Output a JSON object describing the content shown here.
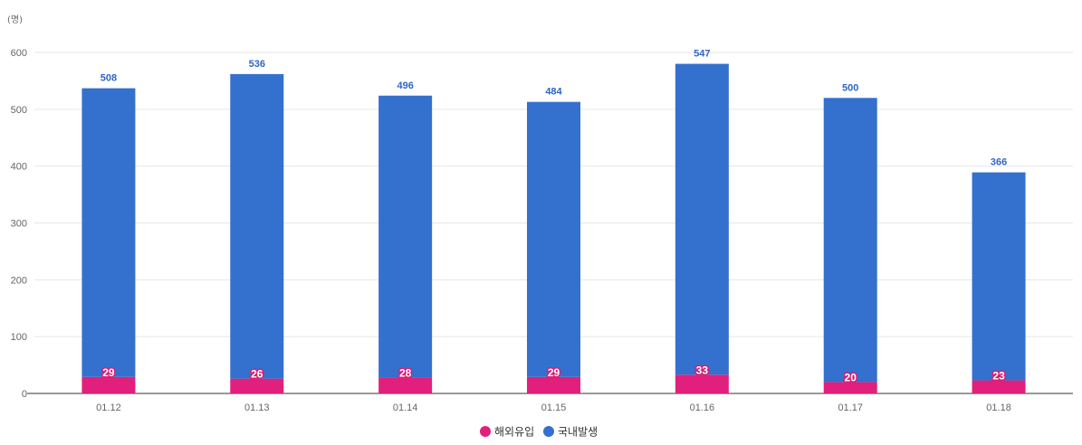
{
  "chart_data": {
    "type": "bar",
    "stacked": true,
    "unit_label": "(명)",
    "categories": [
      "01.12",
      "01.13",
      "01.14",
      "01.15",
      "01.16",
      "01.17",
      "01.18"
    ],
    "series": [
      {
        "name": "해외유입",
        "color": "#e0207c",
        "values": [
          29,
          26,
          28,
          29,
          33,
          20,
          23
        ]
      },
      {
        "name": "국내발생",
        "color": "#3470ce",
        "values": [
          508,
          536,
          496,
          484,
          547,
          500,
          366
        ]
      }
    ],
    "ylim": [
      0,
      600
    ],
    "yticks": [
      0,
      100,
      200,
      300,
      400,
      500,
      600
    ],
    "grid": true,
    "legend_position": "bottom-center"
  }
}
